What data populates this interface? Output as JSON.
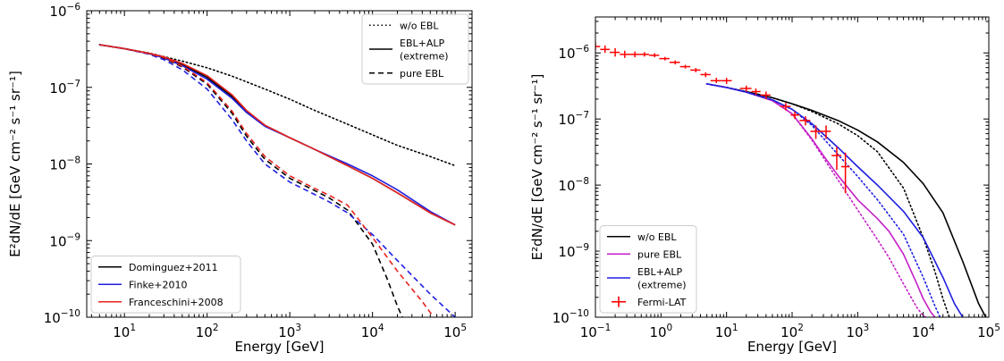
{
  "figure": {
    "panels": [
      "left",
      "right"
    ]
  },
  "chart_data": [
    {
      "type": "line",
      "panel": "left",
      "xscale": "log",
      "yscale": "log",
      "xlim": [
        3.5,
        160000
      ],
      "ylim": [
        1e-10,
        1e-06
      ],
      "xlabel": "Energy [GeV]",
      "ylabel": "E²dN/dE [GeV cm⁻² s⁻¹ sr⁻¹]",
      "xticks": [
        {
          "value": 10,
          "base": "10",
          "exp": "1"
        },
        {
          "value": 100,
          "base": "10",
          "exp": "2"
        },
        {
          "value": 1000,
          "base": "10",
          "exp": "3"
        },
        {
          "value": 10000,
          "base": "10",
          "exp": "4"
        },
        {
          "value": 100000,
          "base": "10",
          "exp": "5"
        }
      ],
      "yticks": [
        {
          "value": 1e-10,
          "base": "10",
          "exp": "−10"
        },
        {
          "value": 1e-09,
          "base": "10",
          "exp": "−9"
        },
        {
          "value": 1e-08,
          "base": "10",
          "exp": "−8"
        },
        {
          "value": 1e-07,
          "base": "10",
          "exp": "−7"
        },
        {
          "value": 1e-06,
          "base": "10",
          "exp": "−6"
        }
      ],
      "grid": false,
      "legends": [
        {
          "placement": "top-right",
          "entries": [
            {
              "label": "w/o EBL",
              "style": "dotted",
              "color": "#000000"
            },
            {
              "label": "EBL+ALP",
              "label2": "(extreme)",
              "style": "solid",
              "color": "#000000"
            },
            {
              "label": "pure EBL",
              "style": "dashed",
              "color": "#000000"
            }
          ]
        },
        {
          "placement": "lower-left",
          "entries": [
            {
              "label": "Dominguez+2011",
              "style": "solid",
              "color": "#000000"
            },
            {
              "label": "Finke+2010",
              "style": "solid",
              "color": "#1f1fe0"
            },
            {
              "label": "Franceschini+2008",
              "style": "solid",
              "color": "#e8231e"
            }
          ]
        }
      ],
      "series": [
        {
          "name": "w/o EBL",
          "style": "dotted",
          "color": "#000000",
          "x": [
            5,
            10,
            20,
            50,
            100,
            200,
            500,
            1000,
            2000,
            5000,
            10000,
            20000,
            50000,
            100000
          ],
          "y": [
            3.6e-07,
            3.2e-07,
            2.8e-07,
            2.2e-07,
            1.8e-07,
            1.4e-07,
            9.5e-08,
            7e-08,
            5e-08,
            3.3e-08,
            2.4e-08,
            1.75e-08,
            1.25e-08,
            9.5e-09
          ]
        },
        {
          "group": "EBL+ALP (extreme)",
          "model": "Dominguez+2011",
          "style": "solid",
          "color": "#000000",
          "x": [
            5,
            10,
            20,
            30,
            50,
            100,
            200,
            300,
            500,
            1000,
            2000,
            5000,
            10000,
            20000,
            50000,
            100000
          ],
          "y": [
            3.6e-07,
            3.2e-07,
            2.75e-07,
            2.45e-07,
            2e-07,
            1.35e-07,
            7.6e-08,
            4.9e-08,
            3.2e-08,
            2.2e-08,
            1.55e-08,
            9.5e-09,
            6.5e-09,
            4.2e-09,
            2.3e-09,
            1.6e-09
          ]
        },
        {
          "group": "EBL+ALP (extreme)",
          "model": "Finke+2010",
          "style": "solid",
          "color": "#1f1fe0",
          "x": [
            5,
            10,
            20,
            30,
            50,
            100,
            200,
            300,
            500,
            1000,
            2000,
            5000,
            10000,
            20000,
            50000,
            100000
          ],
          "y": [
            3.6e-07,
            3.2e-07,
            2.75e-07,
            2.42e-07,
            1.92e-07,
            1.28e-07,
            7.2e-08,
            4.7e-08,
            3.1e-08,
            2.2e-08,
            1.55e-08,
            1e-08,
            7e-09,
            4.6e-09,
            2.4e-09,
            1.6e-09
          ]
        },
        {
          "group": "EBL+ALP (extreme)",
          "model": "Franceschini+2008",
          "style": "solid",
          "color": "#e8231e",
          "x": [
            5,
            10,
            20,
            30,
            50,
            100,
            200,
            300,
            500,
            1000,
            2000,
            5000,
            10000,
            20000,
            50000,
            100000
          ],
          "y": [
            3.6e-07,
            3.2e-07,
            2.78e-07,
            2.5e-07,
            2.05e-07,
            1.42e-07,
            8e-08,
            5e-08,
            3.2e-08,
            2.2e-08,
            1.55e-08,
            9.5e-09,
            6.5e-09,
            4.2e-09,
            2.3e-09,
            1.6e-09
          ]
        },
        {
          "group": "pure EBL",
          "model": "Dominguez+2011",
          "style": "dashed",
          "color": "#000000",
          "x": [
            5,
            10,
            20,
            30,
            50,
            100,
            200,
            300,
            500,
            1000,
            2000,
            3000,
            5000,
            10000,
            15000,
            20000,
            23000
          ],
          "y": [
            3.6e-07,
            3.2e-07,
            2.75e-07,
            2.4e-07,
            1.85e-07,
            1.1e-07,
            4.6e-08,
            2.3e-08,
            1.15e-08,
            6.5e-09,
            4.5e-09,
            3.6e-09,
            2.5e-09,
            9e-10,
            3.2e-10,
            1.4e-10,
            1e-10
          ]
        },
        {
          "group": "pure EBL",
          "model": "Finke+2010",
          "style": "dashed",
          "color": "#1f1fe0",
          "x": [
            5,
            10,
            20,
            30,
            50,
            100,
            200,
            300,
            500,
            1000,
            2000,
            3000,
            5000,
            10000,
            20000,
            50000,
            100000
          ],
          "y": [
            3.6e-07,
            3.2e-07,
            2.7e-07,
            2.3e-07,
            1.7e-07,
            9.5e-08,
            3.8e-08,
            2e-08,
            1e-08,
            5.8e-09,
            4e-09,
            3.2e-09,
            2.3e-09,
            1.2e-09,
            5.5e-10,
            2e-10,
            1e-10
          ]
        },
        {
          "group": "pure EBL",
          "model": "Franceschini+2008",
          "style": "dashed",
          "color": "#e8231e",
          "x": [
            5,
            10,
            20,
            30,
            50,
            100,
            200,
            300,
            500,
            1000,
            2000,
            3000,
            5000,
            10000,
            20000,
            40000,
            55000
          ],
          "y": [
            3.6e-07,
            3.2e-07,
            2.75e-07,
            2.45e-07,
            1.9e-07,
            1.15e-07,
            4.9e-08,
            2.5e-08,
            1.25e-08,
            7e-09,
            4.8e-09,
            3.9e-09,
            2.9e-09,
            1.1e-09,
            4e-10,
            1.6e-10,
            1e-10
          ]
        }
      ]
    },
    {
      "type": "line",
      "panel": "right",
      "xscale": "log",
      "yscale": "log",
      "xlim": [
        0.1,
        100000
      ],
      "ylim": [
        1e-10,
        3.5e-06
      ],
      "xlabel": "Energy [GeV]",
      "ylabel": "E²dN/dE [GeV cm⁻² s⁻¹ sr⁻¹]",
      "xticks": [
        {
          "value": 0.1,
          "base": "10",
          "exp": "−1"
        },
        {
          "value": 1,
          "base": "10",
          "exp": "0"
        },
        {
          "value": 10,
          "base": "10",
          "exp": "1"
        },
        {
          "value": 100,
          "base": "10",
          "exp": "2"
        },
        {
          "value": 1000,
          "base": "10",
          "exp": "3"
        },
        {
          "value": 10000,
          "base": "10",
          "exp": "4"
        },
        {
          "value": 100000,
          "base": "10",
          "exp": "5"
        }
      ],
      "yticks": [
        {
          "value": 1e-10,
          "base": "10",
          "exp": "−10"
        },
        {
          "value": 1e-09,
          "base": "10",
          "exp": "−9"
        },
        {
          "value": 1e-08,
          "base": "10",
          "exp": "−8"
        },
        {
          "value": 1e-07,
          "base": "10",
          "exp": "−7"
        },
        {
          "value": 1e-06,
          "base": "10",
          "exp": "−6"
        }
      ],
      "grid": false,
      "legends": [
        {
          "placement": "lower-left",
          "entries": [
            {
              "label": "w/o EBL",
              "style": "solid",
              "color": "#000000"
            },
            {
              "label": "pure EBL",
              "style": "solid",
              "color": "#c61ec8"
            },
            {
              "label": "EBL+ALP",
              "label2": "(extreme)",
              "style": "solid",
              "color": "#1f1fe0"
            },
            {
              "label": "Fermi-LAT",
              "style": "errorbar",
              "color": "#ff0000"
            }
          ]
        }
      ],
      "series": [
        {
          "name": "w/o EBL",
          "style": "solid",
          "color": "#000000",
          "x": [
            5,
            10,
            20,
            50,
            100,
            200,
            500,
            1000,
            2000,
            5000,
            10000,
            20000,
            40000,
            70000,
            90000
          ],
          "y": [
            3.4e-07,
            3e-07,
            2.6e-07,
            2.1e-07,
            1.7e-07,
            1.35e-07,
            9.5e-08,
            6.8e-08,
            4.5e-08,
            2.2e-08,
            1.05e-08,
            3.8e-09,
            7e-10,
            1.6e-10,
            1e-10
          ]
        },
        {
          "style": "dotted",
          "color": "#000000",
          "x": [
            5,
            10,
            20,
            50,
            100,
            200,
            500,
            1000,
            2000,
            5000,
            10000,
            15000,
            20000,
            25000
          ],
          "y": [
            3.4e-07,
            3e-07,
            2.6e-07,
            2.1e-07,
            1.7e-07,
            1.3e-07,
            8.5e-08,
            5.6e-08,
            3.2e-08,
            9e-09,
            1.6e-09,
            5e-10,
            1.9e-10,
            1e-10
          ]
        },
        {
          "name": "pure EBL",
          "style": "solid",
          "color": "#c61ec8",
          "x": [
            5,
            10,
            20,
            50,
            100,
            200,
            300,
            500,
            1000,
            2000,
            3000,
            5000,
            8000,
            10000,
            13000,
            15000
          ],
          "y": [
            3.4e-07,
            3e-07,
            2.55e-07,
            1.9e-07,
            1.2e-07,
            5e-08,
            2.8e-08,
            1.4e-08,
            6e-09,
            3.1e-09,
            2e-09,
            9e-10,
            3.2e-10,
            1.9e-10,
            1.2e-10,
            1e-10
          ]
        },
        {
          "style": "dotted",
          "color": "#c61ec8",
          "x": [
            5,
            10,
            20,
            50,
            100,
            200,
            300,
            500,
            1000,
            2000,
            3000,
            5000,
            8000,
            10000,
            11000
          ],
          "y": [
            3.4e-07,
            3e-07,
            2.55e-07,
            1.9e-07,
            1.2e-07,
            4.8e-08,
            2.6e-08,
            1.2e-08,
            4.2e-09,
            1.5e-09,
            8e-10,
            3.2e-10,
            1.4e-10,
            1.05e-10,
            1e-10
          ]
        },
        {
          "name": "EBL+ALP (extreme)",
          "style": "solid",
          "color": "#1f1fe0",
          "x": [
            5,
            10,
            20,
            50,
            100,
            200,
            500,
            1000,
            2000,
            5000,
            10000,
            20000,
            30000,
            40000
          ],
          "y": [
            3.4e-07,
            3e-07,
            2.55e-07,
            1.95e-07,
            1.4e-07,
            8.5e-08,
            3.7e-08,
            1.9e-08,
            1e-08,
            4e-09,
            1.6e-09,
            4e-10,
            1.6e-10,
            1e-10
          ]
        },
        {
          "style": "dotted",
          "color": "#1f1fe0",
          "x": [
            5,
            10,
            20,
            50,
            100,
            200,
            500,
            1000,
            2000,
            5000,
            10000,
            15000,
            18000
          ],
          "y": [
            3.4e-07,
            3e-07,
            2.55e-07,
            1.95e-07,
            1.4e-07,
            8e-08,
            2.9e-08,
            1.35e-08,
            6e-09,
            1.8e-09,
            4e-10,
            1.5e-10,
            1e-10
          ]
        },
        {
          "name": "Fermi-LAT",
          "type": "errorbar",
          "color": "#ff0000",
          "points": [
            {
              "x": 0.1,
              "y": 1.25e-06,
              "xlo": 0.085,
              "xhi": 0.118,
              "ylo": 1.1e-06,
              "yhi": 1.45e-06
            },
            {
              "x": 0.14,
              "y": 1.13e-06,
              "xlo": 0.118,
              "xhi": 0.165,
              "ylo": 1e-06,
              "yhi": 1.3e-06
            },
            {
              "x": 0.2,
              "y": 1.02e-06,
              "xlo": 0.165,
              "xhi": 0.235,
              "ylo": 8.8e-07,
              "yhi": 1.18e-06
            },
            {
              "x": 0.28,
              "y": 9.5e-07,
              "xlo": 0.235,
              "xhi": 0.33,
              "ylo": 8.4e-07,
              "yhi": 1.08e-06
            },
            {
              "x": 0.4,
              "y": 9.5e-07,
              "xlo": 0.33,
              "xhi": 0.47,
              "ylo": 8.6e-07,
              "yhi": 1.05e-06
            },
            {
              "x": 0.56,
              "y": 9.5e-07,
              "xlo": 0.47,
              "xhi": 0.66,
              "ylo": 8.8e-07,
              "yhi": 1.03e-06
            },
            {
              "x": 0.8,
              "y": 9.2e-07,
              "xlo": 0.66,
              "xhi": 0.94,
              "ylo": 8.6e-07,
              "yhi": 9.9e-07
            },
            {
              "x": 1.15,
              "y": 8.2e-07,
              "xlo": 0.94,
              "xhi": 1.35,
              "ylo": 7.7e-07,
              "yhi": 8.7e-07
            },
            {
              "x": 1.65,
              "y": 7.2e-07,
              "xlo": 1.35,
              "xhi": 1.95,
              "ylo": 6.7e-07,
              "yhi": 7.7e-07
            },
            {
              "x": 2.35,
              "y": 6.2e-07,
              "xlo": 1.95,
              "xhi": 2.8,
              "ylo": 5.8e-07,
              "yhi": 6.6e-07
            },
            {
              "x": 3.4,
              "y": 5.5e-07,
              "xlo": 2.8,
              "xhi": 4,
              "ylo": 5.1e-07,
              "yhi": 5.9e-07
            },
            {
              "x": 4.8,
              "y": 4.7e-07,
              "xlo": 4,
              "xhi": 5.7,
              "ylo": 4.3e-07,
              "yhi": 5.1e-07
            },
            {
              "x": 7,
              "y": 3.8e-07,
              "xlo": 5.7,
              "xhi": 8.2,
              "ylo": 3.5e-07,
              "yhi": 4.2e-07
            },
            {
              "x": 10,
              "y": 3.8e-07,
              "xlo": 8.2,
              "xhi": 12,
              "ylo": 3.4e-07,
              "yhi": 4.2e-07
            },
            {
              "x": 20,
              "y": 2.9e-07,
              "xlo": 16,
              "xhi": 24,
              "ylo": 2.6e-07,
              "yhi": 3.2e-07
            },
            {
              "x": 28,
              "y": 2.6e-07,
              "xlo": 24,
              "xhi": 33,
              "ylo": 2.3e-07,
              "yhi": 2.9e-07
            },
            {
              "x": 40,
              "y": 2.3e-07,
              "xlo": 33,
              "xhi": 47,
              "ylo": 2e-07,
              "yhi": 2.6e-07
            },
            {
              "x": 80,
              "y": 1.55e-07,
              "xlo": 66,
              "xhi": 95,
              "ylo": 1.35e-07,
              "yhi": 1.75e-07
            },
            {
              "x": 110,
              "y": 1.15e-07,
              "xlo": 95,
              "xhi": 130,
              "ylo": 1e-07,
              "yhi": 1.3e-07
            },
            {
              "x": 160,
              "y": 9.5e-08,
              "xlo": 130,
              "xhi": 190,
              "ylo": 8e-08,
              "yhi": 1.1e-07
            },
            {
              "x": 230,
              "y": 6.5e-08,
              "xlo": 190,
              "xhi": 270,
              "ylo": 5e-08,
              "yhi": 8e-08
            },
            {
              "x": 330,
              "y": 6.5e-08,
              "xlo": 270,
              "xhi": 390,
              "ylo": 5e-08,
              "yhi": 8e-08
            },
            {
              "x": 480,
              "y": 2.8e-08,
              "xlo": 400,
              "xhi": 560,
              "ylo": 1.7e-08,
              "yhi": 3.8e-08
            },
            {
              "x": 650,
              "y": 1.9e-08,
              "xlo": 560,
              "xhi": 760,
              "ylo": 7.5e-09,
              "yhi": 3.1e-08
            }
          ]
        }
      ]
    }
  ]
}
